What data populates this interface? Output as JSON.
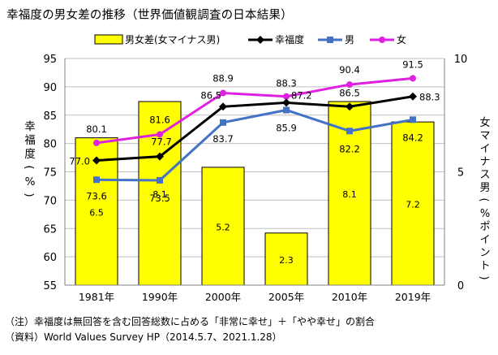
{
  "title": "幸福度の男女差の推移（世界価値観調査の日本結果）",
  "notes": [
    "（注）幸福度は無回答を含む回答総数に占める「非常に幸せ」＋「やや幸せ」の割合",
    "（資料）World Values Survey HP（2014.5.7、2021.1.28）"
  ],
  "chart_data": {
    "type": "bar+line",
    "categories": [
      "1981年",
      "1990年",
      "2000年",
      "2005年",
      "2010年",
      "2019年"
    ],
    "left_axis": {
      "label": "幸福度（%）",
      "ylim": [
        55,
        95
      ],
      "ticks": [
        55,
        60,
        65,
        70,
        75,
        80,
        85,
        90,
        95
      ]
    },
    "right_axis": {
      "label": "女マイナス男（%ポイント）",
      "ylim": [
        0,
        10
      ],
      "ticks": [
        0,
        5,
        10
      ]
    },
    "series": [
      {
        "name": "男女差(女マイナス男)",
        "kind": "bar",
        "axis": "right",
        "color": "#ffff00",
        "values": [
          6.5,
          8.1,
          5.2,
          2.3,
          8.1,
          7.2
        ]
      },
      {
        "name": "幸福度",
        "kind": "line",
        "axis": "left",
        "color": "#000000",
        "values": [
          77.0,
          77.7,
          86.5,
          87.2,
          86.5,
          88.3
        ]
      },
      {
        "name": "男",
        "kind": "line",
        "axis": "left",
        "color": "#4472c4",
        "values": [
          73.6,
          73.5,
          83.7,
          85.9,
          82.2,
          84.2
        ]
      },
      {
        "name": "女",
        "kind": "line",
        "axis": "left",
        "color": "#e020e0",
        "values": [
          80.1,
          81.6,
          88.9,
          88.3,
          90.4,
          91.5
        ]
      }
    ],
    "data_labels": {
      "幸福度": [
        "77.0",
        "77.7",
        "86.5",
        "87.2",
        "86.5",
        "88.3"
      ],
      "男": [
        "73.6",
        "73.5",
        "83.7",
        "85.9",
        "82.2",
        "84.2"
      ],
      "女": [
        "80.1",
        "81.6",
        "88.9",
        "88.3",
        "90.4",
        "91.5"
      ],
      "男女差(女マイナス男)": [
        "6.5",
        "8.1",
        "5.2",
        "2.3",
        "8.1",
        "7.2"
      ]
    },
    "legend_position": "top"
  }
}
